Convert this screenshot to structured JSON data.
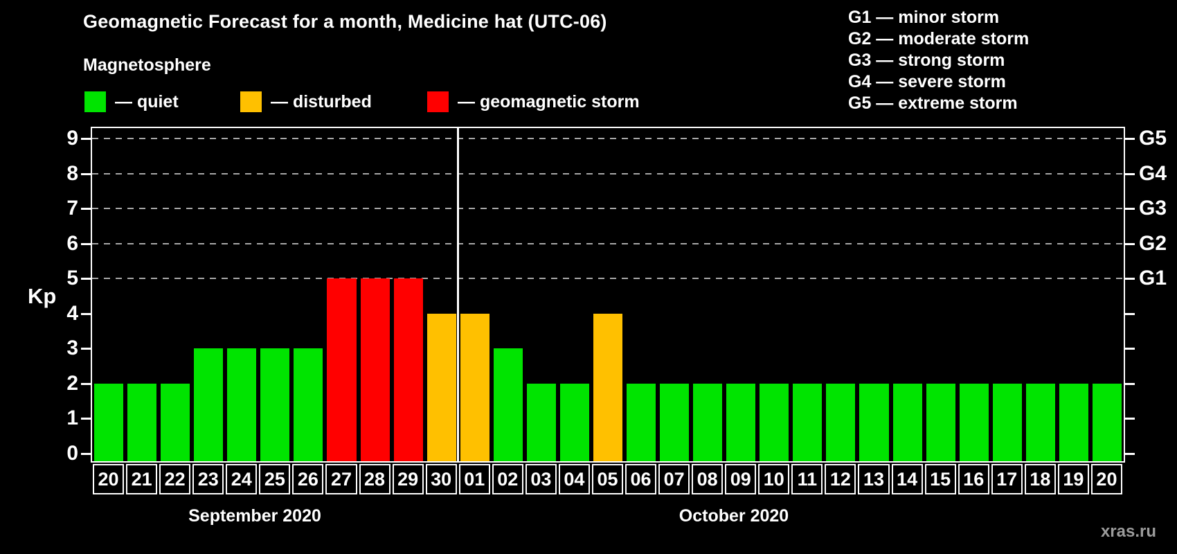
{
  "header": {
    "title": "Geomagnetic Forecast for a month, Medicine hat (UTC-06)",
    "subtitle": "Magnetosphere"
  },
  "legend": {
    "items": [
      {
        "key": "quiet",
        "label": "— quiet",
        "color": "#00e400"
      },
      {
        "key": "disturbed",
        "label": "— disturbed",
        "color": "#ffc000"
      },
      {
        "key": "storm",
        "label": "— geomagnetic storm",
        "color": "#ff0000"
      }
    ]
  },
  "storm_legend": [
    "G1 — minor storm",
    "G2 — moderate storm",
    "G3 — strong storm",
    "G4 — severe storm",
    "G5 — extreme storm"
  ],
  "watermark": "xras.ru",
  "chart_data": {
    "type": "bar",
    "title": "Geomagnetic Forecast for a month, Medicine hat (UTC-06)",
    "xlabel": "",
    "ylabel": "Kp",
    "ylim": [
      0,
      9
    ],
    "y_ticks": [
      0,
      1,
      2,
      3,
      4,
      5,
      6,
      7,
      8,
      9
    ],
    "gridlines_at_kp": [
      5,
      6,
      7,
      8,
      9
    ],
    "grid": "dashed horizontal at Kp 5-9",
    "legend_position": "top-left",
    "right_axis": [
      {
        "kp": 5,
        "label": "G1"
      },
      {
        "kp": 6,
        "label": "G2"
      },
      {
        "kp": 7,
        "label": "G3"
      },
      {
        "kp": 8,
        "label": "G4"
      },
      {
        "kp": 9,
        "label": "G5"
      }
    ],
    "status_colors": {
      "quiet": "#00e400",
      "disturbed": "#ffc000",
      "storm": "#ff0000"
    },
    "months": [
      {
        "label": "September 2020",
        "days": 11
      },
      {
        "label": "October 2020",
        "days": 20
      }
    ],
    "month_divider_after_index": 10,
    "bars": [
      {
        "month": "September 2020",
        "day": "20",
        "kp": 2,
        "status": "quiet"
      },
      {
        "month": "September 2020",
        "day": "21",
        "kp": 2,
        "status": "quiet"
      },
      {
        "month": "September 2020",
        "day": "22",
        "kp": 2,
        "status": "quiet"
      },
      {
        "month": "September 2020",
        "day": "23",
        "kp": 3,
        "status": "quiet"
      },
      {
        "month": "September 2020",
        "day": "24",
        "kp": 3,
        "status": "quiet"
      },
      {
        "month": "September 2020",
        "day": "25",
        "kp": 3,
        "status": "quiet"
      },
      {
        "month": "September 2020",
        "day": "26",
        "kp": 3,
        "status": "quiet"
      },
      {
        "month": "September 2020",
        "day": "27",
        "kp": 5,
        "status": "storm"
      },
      {
        "month": "September 2020",
        "day": "28",
        "kp": 5,
        "status": "storm"
      },
      {
        "month": "September 2020",
        "day": "29",
        "kp": 5,
        "status": "storm"
      },
      {
        "month": "September 2020",
        "day": "30",
        "kp": 4,
        "status": "disturbed"
      },
      {
        "month": "October 2020",
        "day": "01",
        "kp": 4,
        "status": "disturbed"
      },
      {
        "month": "October 2020",
        "day": "02",
        "kp": 3,
        "status": "quiet"
      },
      {
        "month": "October 2020",
        "day": "03",
        "kp": 2,
        "status": "quiet"
      },
      {
        "month": "October 2020",
        "day": "04",
        "kp": 2,
        "status": "quiet"
      },
      {
        "month": "October 2020",
        "day": "05",
        "kp": 4,
        "status": "disturbed"
      },
      {
        "month": "October 2020",
        "day": "06",
        "kp": 2,
        "status": "quiet"
      },
      {
        "month": "October 2020",
        "day": "07",
        "kp": 2,
        "status": "quiet"
      },
      {
        "month": "October 2020",
        "day": "08",
        "kp": 2,
        "status": "quiet"
      },
      {
        "month": "October 2020",
        "day": "09",
        "kp": 2,
        "status": "quiet"
      },
      {
        "month": "October 2020",
        "day": "10",
        "kp": 2,
        "status": "quiet"
      },
      {
        "month": "October 2020",
        "day": "11",
        "kp": 2,
        "status": "quiet"
      },
      {
        "month": "October 2020",
        "day": "12",
        "kp": 2,
        "status": "quiet"
      },
      {
        "month": "October 2020",
        "day": "13",
        "kp": 2,
        "status": "quiet"
      },
      {
        "month": "October 2020",
        "day": "14",
        "kp": 2,
        "status": "quiet"
      },
      {
        "month": "October 2020",
        "day": "15",
        "kp": 2,
        "status": "quiet"
      },
      {
        "month": "October 2020",
        "day": "16",
        "kp": 2,
        "status": "quiet"
      },
      {
        "month": "October 2020",
        "day": "17",
        "kp": 2,
        "status": "quiet"
      },
      {
        "month": "October 2020",
        "day": "18",
        "kp": 2,
        "status": "quiet"
      },
      {
        "month": "October 2020",
        "day": "19",
        "kp": 2,
        "status": "quiet"
      },
      {
        "month": "October 2020",
        "day": "20",
        "kp": 2,
        "status": "quiet"
      }
    ]
  }
}
